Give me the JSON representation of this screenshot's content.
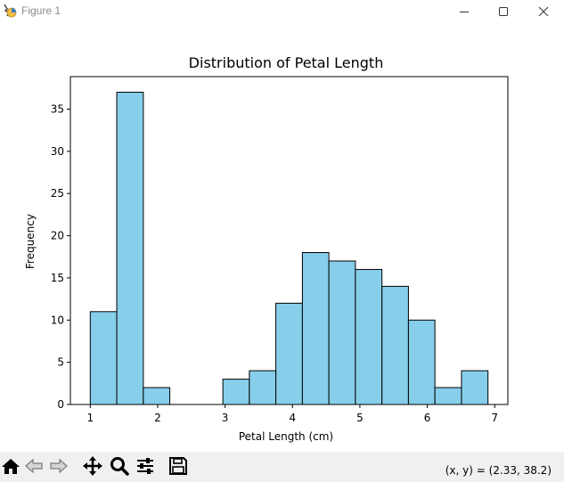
{
  "window": {
    "title": "Figure 1",
    "icons": {
      "app": "matplotlib-figure-icon",
      "minimize": "minimize-icon",
      "maximize": "maximize-icon",
      "close": "close-icon"
    }
  },
  "toolbar": {
    "buttons": [
      {
        "name": "home-button",
        "icon": "home-icon"
      },
      {
        "name": "back-button",
        "icon": "back-arrow-icon"
      },
      {
        "name": "forward-button",
        "icon": "forward-arrow-icon"
      },
      {
        "name": "pan-button",
        "icon": "move-icon"
      },
      {
        "name": "zoom-button",
        "icon": "magnifier-icon"
      },
      {
        "name": "configure-subplots-button",
        "icon": "sliders-icon"
      },
      {
        "name": "save-button",
        "icon": "floppy-disk-icon"
      }
    ],
    "coords_text": "(x, y) = (2.33, 38.2)"
  },
  "colors": {
    "bar_fill": "#87CEEB",
    "bar_edge": "#000000",
    "toolbar_bg": "#f0f0f0"
  },
  "chart_data": {
    "type": "bar",
    "title": "Distribution of Petal Length",
    "xlabel": "Petal Length (cm)",
    "ylabel": "Frequency",
    "xlim": [
      0.705,
      7.195
    ],
    "ylim": [
      0,
      38.85
    ],
    "xticks": [
      1,
      2,
      3,
      4,
      5,
      6,
      7
    ],
    "xtick_labels": [
      "1",
      "2",
      "3",
      "4",
      "5",
      "6",
      "7"
    ],
    "yticks": [
      0,
      5,
      10,
      15,
      20,
      25,
      30,
      35
    ],
    "ytick_labels": [
      "0",
      "5",
      "10",
      "15",
      "20",
      "25",
      "30",
      "35"
    ],
    "bin_edges": [
      1.0,
      1.393,
      1.787,
      2.18,
      2.573,
      2.967,
      3.36,
      3.753,
      4.147,
      4.54,
      4.933,
      5.327,
      5.72,
      6.113,
      6.507,
      6.9
    ],
    "values": [
      11,
      37,
      2,
      0,
      0,
      3,
      4,
      12,
      18,
      17,
      16,
      14,
      10,
      2,
      4
    ],
    "grid": false,
    "legend": "none"
  }
}
